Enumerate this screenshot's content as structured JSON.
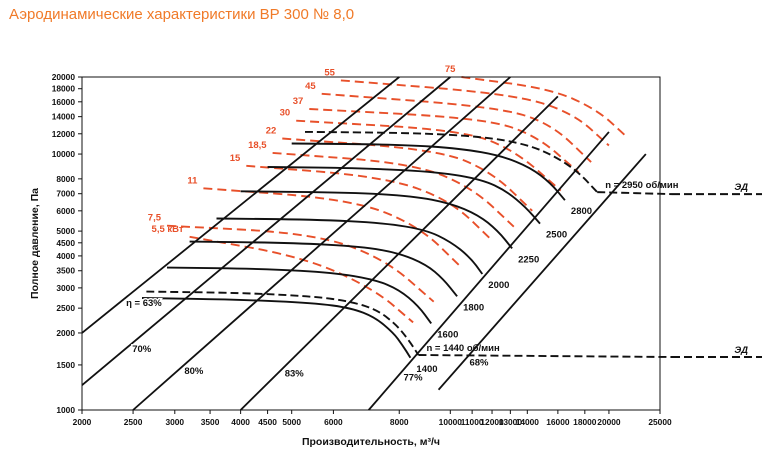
{
  "title": "Аэродинамические характеристики ВР 300 № 8,0",
  "colors": {
    "title": "#f07a28",
    "power": "#e8502a",
    "ink": "#111111"
  },
  "chart_data": {
    "type": "line",
    "title": "Аэродинамические характеристики ВР 300 № 8,0",
    "xlabel": "Производительность, м³/ч",
    "ylabel": "Полное давление, Па",
    "xscale": "log",
    "yscale": "log",
    "xlim": [
      2000,
      25000
    ],
    "ylim": [
      1000,
      20000
    ],
    "x_ticks": [
      2000,
      2500,
      3000,
      3500,
      4000,
      4500,
      5000,
      6000,
      8000,
      10000,
      11000,
      12000,
      13000,
      14000,
      16000,
      18000,
      20000,
      25000
    ],
    "x_tick_labels": [
      "2000",
      "2500",
      "3000",
      "3500",
      "4000",
      "4500",
      "5000",
      "6000",
      "8000",
      "10000",
      "11000",
      "12000",
      "13000",
      "14000",
      "16000",
      "18000",
      "20000",
      "25000"
    ],
    "y_ticks": [
      1000,
      1500,
      2000,
      2500,
      3000,
      3500,
      4000,
      4500,
      5000,
      6000,
      7000,
      8000,
      10000,
      12000,
      14000,
      16000,
      18000,
      20000
    ],
    "y_tick_labels": [
      "1000",
      "1500",
      "2000",
      "2500",
      "3000",
      "3500",
      "4000",
      "4500",
      "5000",
      "6000",
      "7000",
      "8000",
      "10000",
      "12000",
      "14000",
      "16000",
      "18000",
      "20000"
    ],
    "speed_curves": [
      {
        "name": "1400",
        "label": "1400",
        "points": [
          [
            2600,
            2740
          ],
          [
            4000,
            2700
          ],
          [
            5500,
            2620
          ],
          [
            6500,
            2500
          ],
          [
            7200,
            2300
          ],
          [
            7800,
            2000
          ],
          [
            8100,
            1800
          ],
          [
            8400,
            1600
          ]
        ]
      },
      {
        "name": "1440 ЭД",
        "label": "n = 1440 об/мин",
        "dashed": true,
        "points": [
          [
            2650,
            2900
          ],
          [
            4000,
            2870
          ],
          [
            5500,
            2780
          ],
          [
            6500,
            2650
          ],
          [
            7300,
            2450
          ],
          [
            7900,
            2150
          ],
          [
            8300,
            1900
          ],
          [
            8700,
            1640
          ]
        ]
      },
      {
        "name": "1600",
        "label": "1600",
        "points": [
          [
            2900,
            3600
          ],
          [
            4500,
            3560
          ],
          [
            6000,
            3440
          ],
          [
            7200,
            3230
          ],
          [
            8000,
            2950
          ],
          [
            8700,
            2550
          ],
          [
            9200,
            2180
          ]
        ]
      },
      {
        "name": "1800",
        "label": "1800",
        "points": [
          [
            3200,
            4550
          ],
          [
            5000,
            4500
          ],
          [
            6800,
            4350
          ],
          [
            8000,
            4100
          ],
          [
            9000,
            3700
          ],
          [
            9700,
            3250
          ],
          [
            10300,
            2780
          ]
        ]
      },
      {
        "name": "2000",
        "label": "2000",
        "points": [
          [
            3600,
            5600
          ],
          [
            5500,
            5550
          ],
          [
            7500,
            5380
          ],
          [
            9000,
            5050
          ],
          [
            10000,
            4550
          ],
          [
            10900,
            3950
          ],
          [
            11500,
            3400
          ]
        ]
      },
      {
        "name": "2250",
        "label": "2250",
        "points": [
          [
            4000,
            7150
          ],
          [
            6500,
            7080
          ],
          [
            8500,
            6850
          ],
          [
            10000,
            6420
          ],
          [
            11300,
            5780
          ],
          [
            12300,
            5020
          ],
          [
            13100,
            4280
          ]
        ]
      },
      {
        "name": "2500",
        "label": "2500",
        "points": [
          [
            4500,
            8900
          ],
          [
            7000,
            8800
          ],
          [
            9500,
            8500
          ],
          [
            11500,
            7950
          ],
          [
            12800,
            7150
          ],
          [
            13900,
            6200
          ],
          [
            14800,
            5350
          ]
        ]
      },
      {
        "name": "2800",
        "label": "2800",
        "points": [
          [
            5000,
            11000
          ],
          [
            8000,
            10900
          ],
          [
            10500,
            10500
          ],
          [
            12500,
            9850
          ],
          [
            14200,
            8850
          ],
          [
            15500,
            7700
          ],
          [
            16500,
            6600
          ]
        ]
      },
      {
        "name": "2950 ЭД",
        "label": "n = 2950 об/мин",
        "dashed": true,
        "points": [
          [
            5300,
            12200
          ],
          [
            8500,
            12100
          ],
          [
            11500,
            11700
          ],
          [
            14000,
            10900
          ],
          [
            15800,
            9800
          ],
          [
            17500,
            8500
          ],
          [
            19000,
            7100
          ]
        ]
      }
    ],
    "efficiency_lines": [
      {
        "label": "η = 63%",
        "points": [
          [
            2000,
            2000
          ],
          [
            8000,
            20000
          ]
        ]
      },
      {
        "label": "70%",
        "points": [
          [
            2000,
            1250
          ],
          [
            10000,
            20000
          ]
        ]
      },
      {
        "label": "80%",
        "points": [
          [
            2500,
            1000
          ],
          [
            13000,
            20000
          ]
        ]
      },
      {
        "label": "83%",
        "points": [
          [
            4000,
            1000
          ],
          [
            16000,
            16800
          ]
        ]
      },
      {
        "label": "77%",
        "points": [
          [
            7000,
            1000
          ],
          [
            20000,
            12200
          ]
        ]
      },
      {
        "label": "68%",
        "points": [
          [
            9500,
            1200
          ],
          [
            23500,
            10000
          ]
        ]
      }
    ],
    "power_lines": [
      {
        "label": "5,5 кВт",
        "points": [
          [
            3200,
            4750
          ],
          [
            5300,
            3950
          ],
          [
            7200,
            2950
          ],
          [
            8500,
            2200
          ]
        ]
      },
      {
        "label": "7,5",
        "points": [
          [
            2900,
            5250
          ],
          [
            5500,
            4900
          ],
          [
            7500,
            3900
          ],
          [
            9300,
            2650
          ]
        ]
      },
      {
        "label": "11",
        "points": [
          [
            3400,
            7350
          ],
          [
            6500,
            6650
          ],
          [
            8700,
            5250
          ],
          [
            10500,
            3600
          ]
        ]
      },
      {
        "label": "15",
        "points": [
          [
            4100,
            9000
          ],
          [
            7500,
            8150
          ],
          [
            10000,
            6600
          ],
          [
            12000,
            4600
          ]
        ]
      },
      {
        "label": "18,5",
        "points": [
          [
            4600,
            10100
          ],
          [
            8500,
            9200
          ],
          [
            11000,
            7400
          ],
          [
            13200,
            5200
          ]
        ]
      },
      {
        "label": "22",
        "points": [
          [
            4800,
            11500
          ],
          [
            9500,
            10400
          ],
          [
            12000,
            8500
          ],
          [
            14300,
            6000
          ]
        ]
      },
      {
        "label": "30",
        "points": [
          [
            5100,
            13500
          ],
          [
            10500,
            12400
          ],
          [
            13200,
            10400
          ],
          [
            16200,
            7200
          ]
        ]
      },
      {
        "label": "37",
        "points": [
          [
            5400,
            15000
          ],
          [
            11500,
            13800
          ],
          [
            14500,
            11900
          ],
          [
            17500,
            8500
          ]
        ]
      },
      {
        "label": "45",
        "points": [
          [
            5700,
            17200
          ],
          [
            12200,
            15300
          ],
          [
            15500,
            13200
          ],
          [
            18500,
            9300
          ]
        ]
      },
      {
        "label": "55",
        "points": [
          [
            6200,
            19400
          ],
          [
            13000,
            17200
          ],
          [
            17000,
            14600
          ],
          [
            20000,
            10800
          ]
        ]
      },
      {
        "label": "75",
        "points": [
          [
            10500,
            20000
          ],
          [
            15500,
            18000
          ],
          [
            19000,
            14900
          ],
          [
            21500,
            11800
          ]
        ]
      }
    ],
    "motor_labels": [
      {
        "label": "ЭД",
        "rpm": "n = 1440 об/мин"
      },
      {
        "label": "ЭД",
        "rpm": "n = 2950 об/мин"
      }
    ]
  }
}
